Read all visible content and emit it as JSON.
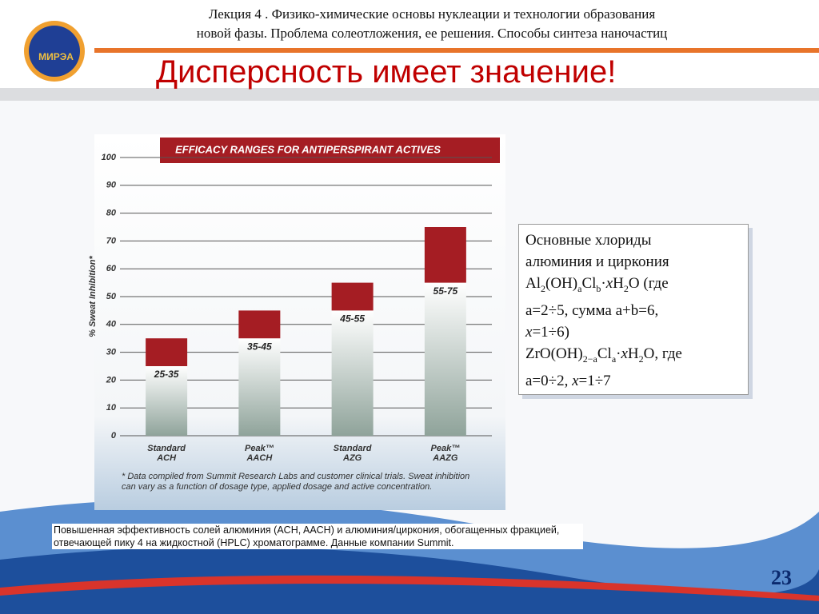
{
  "header": {
    "lines": [
      "Лекция 4 . Физико-химические основы нуклеации и технологии образования",
      "новой фазы. Проблема солеотложения, ее решения. Способы синтеза наночастиц"
    ],
    "logo_text": "МИРЭА"
  },
  "title": "Дисперсность имеет значение!",
  "chart_data": {
    "type": "range-bar",
    "title": "EFFICACY RANGES FOR ANTIPERSPIRANT ACTIVES",
    "y_label": "% Sweat Inhibition*",
    "categories": [
      "Standard ACH",
      "Peak™ AACH",
      "Standard AZG",
      "Peak™ AAZG"
    ],
    "lows": [
      25,
      35,
      45,
      55
    ],
    "highs": [
      35,
      45,
      55,
      75
    ],
    "value_labels": [
      "25-35",
      "35-45",
      "45-55",
      "55-75"
    ],
    "color": "#a51d23",
    "ylim": [
      0,
      100
    ],
    "yticks": [
      0,
      10,
      20,
      30,
      40,
      50,
      60,
      70,
      80,
      90,
      100
    ],
    "grid": true,
    "footnote": "* Data compiled from Summit Research Labs and customer clinical trials. Sweat inhibition can vary as a function of dosage type, applied dosage and active concentration."
  },
  "textbox": {
    "lines": [
      [
        "Основные хлориды"
      ],
      [
        "алюминия и циркония"
      ],
      [
        "Al",
        {
          "sub": "2"
        },
        "(OH)",
        {
          "sub": "a"
        },
        "Cl",
        {
          "sub": "b"
        },
        "·",
        {
          "i": "x"
        },
        "H",
        {
          "sub": "2"
        },
        "O (где"
      ],
      [
        "a=2÷5, сумма a+b=6,"
      ],
      [
        {
          "i": "x"
        },
        "=1÷6)"
      ],
      [
        "ZrO(OH)",
        {
          "sub": "2−a"
        },
        "Cl",
        {
          "sub": "a"
        },
        "·",
        {
          "i": "x"
        },
        "H",
        {
          "sub": "2"
        },
        "O, где"
      ],
      [
        "a=0÷2, ",
        {
          "i": "x"
        },
        "=1÷7"
      ]
    ]
  },
  "caption": "Повышенная эффективность солей алюминия (ACH, AACH) и алюминия/циркония, обогащенных фракцией, отвечающей пику 4 на жидкостной (HPLC) хроматограмме. Данные компании Summit.",
  "page_number": "23"
}
